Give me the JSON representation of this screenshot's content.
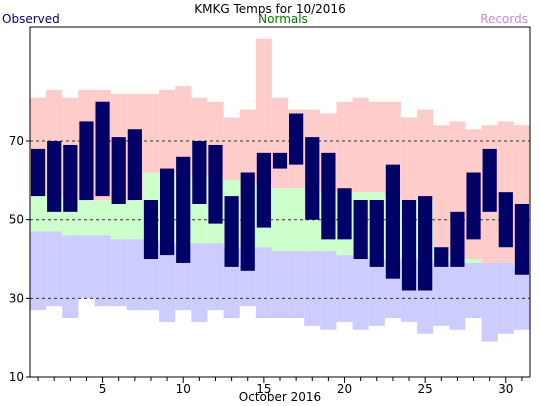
{
  "chart_data": {
    "type": "bar",
    "title": "KMKG Temps for 10/2016",
    "xlabel": "October 2016",
    "ylabel": "",
    "ylim": [
      10,
      99
    ],
    "yticks": [
      10,
      30,
      50,
      70
    ],
    "xticks": [
      5,
      10,
      15,
      20,
      25,
      30
    ],
    "grid": "dashed horizontal at 30, 50, 70",
    "legend": [
      "Observed",
      "Normals",
      "Records"
    ],
    "legend_placement": "top",
    "colors": {
      "observed": "#000066",
      "normals": "#ccffcc",
      "normals_label": "#007700",
      "records_high": "#ffcccc",
      "records_low": "#ccccff",
      "records_label": "#cc88dd",
      "grid": "#333333"
    },
    "days": [
      1,
      2,
      3,
      4,
      5,
      6,
      7,
      8,
      9,
      10,
      11,
      12,
      13,
      14,
      15,
      16,
      17,
      18,
      19,
      20,
      21,
      22,
      23,
      24,
      25,
      26,
      27,
      28,
      29,
      30,
      31
    ],
    "record_high": [
      81,
      83,
      81,
      83,
      83,
      82,
      82,
      82,
      83,
      84,
      81,
      80,
      76,
      78,
      96,
      81,
      78,
      78,
      77,
      80,
      81,
      80,
      80,
      76,
      78,
      74,
      75,
      73,
      74,
      75,
      74
    ],
    "record_low": [
      27,
      28,
      25,
      30,
      28,
      28,
      27,
      27,
      24,
      27,
      24,
      27,
      25,
      28,
      25,
      25,
      25,
      23,
      22,
      24,
      22,
      23,
      25,
      24,
      21,
      23,
      22,
      25,
      19,
      21,
      22
    ],
    "normal_high": [
      56,
      56,
      56,
      55,
      55,
      55,
      55,
      62,
      62,
      61,
      61,
      61,
      60,
      60,
      59,
      58,
      58,
      58,
      57,
      57,
      57,
      57,
      56,
      55,
      55,
      41,
      41,
      40,
      39,
      39,
      39
    ],
    "normal_low": [
      47,
      47,
      46,
      46,
      46,
      45,
      45,
      45,
      44,
      44,
      44,
      44,
      43,
      43,
      43,
      42,
      42,
      42,
      42,
      41,
      41,
      40,
      40,
      40,
      40,
      39,
      39,
      39,
      39,
      39,
      38
    ],
    "observed_high": [
      68,
      70,
      69,
      75,
      80,
      71,
      73,
      55,
      63,
      66,
      70,
      69,
      56,
      62,
      67,
      67,
      77,
      71,
      67,
      58,
      55,
      55,
      64,
      55,
      56,
      43,
      52,
      62,
      68,
      57,
      54
    ],
    "observed_low": [
      56,
      52,
      52,
      55,
      56,
      54,
      55,
      40,
      41,
      39,
      54,
      49,
      38,
      37,
      48,
      63,
      64,
      50,
      45,
      45,
      40,
      38,
      35,
      32,
      32,
      38,
      38,
      45,
      52,
      43,
      36
    ]
  }
}
